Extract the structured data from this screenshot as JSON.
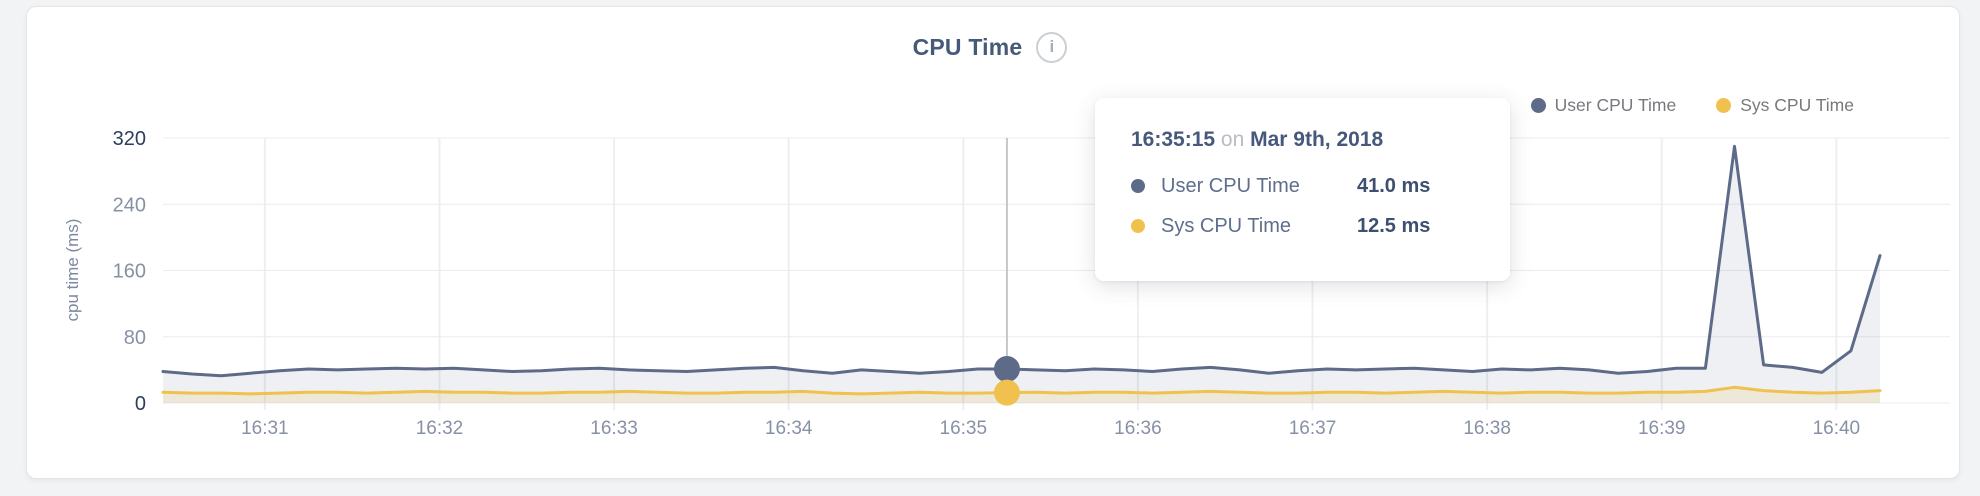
{
  "header": {
    "title": "CPU Time",
    "info_icon_glyph": "i"
  },
  "legend": [
    {
      "label": "User CPU Time",
      "color": "#5d6a88"
    },
    {
      "label": "Sys CPU Time",
      "color": "#f0c14e"
    }
  ],
  "tooltip": {
    "time": "16:35:15",
    "on_word": "on",
    "date": "Mar 9th, 2018",
    "rows": [
      {
        "label": "User CPU Time",
        "value": "41.0 ms",
        "color": "#5d6a88"
      },
      {
        "label": "Sys CPU Time",
        "value": "12.5 ms",
        "color": "#f0c14e"
      }
    ]
  },
  "chart_data": {
    "type": "area",
    "title": "CPU Time",
    "xlabel": "",
    "ylabel": "cpu time (ms)",
    "y_max": 320,
    "y_ticks": [
      0,
      80,
      160,
      240,
      320
    ],
    "grid": true,
    "legend_position": "top-right",
    "x_tick_labels": [
      "16:31",
      "16:32",
      "16:33",
      "16:34",
      "16:35",
      "16:36",
      "16:37",
      "16:38",
      "16:39",
      "16:40"
    ],
    "times": [
      "16:30:25",
      "16:30:35",
      "16:30:45",
      "16:30:55",
      "16:31:05",
      "16:31:15",
      "16:31:25",
      "16:31:35",
      "16:31:45",
      "16:31:55",
      "16:32:05",
      "16:32:15",
      "16:32:25",
      "16:32:35",
      "16:32:45",
      "16:32:55",
      "16:33:05",
      "16:33:15",
      "16:33:25",
      "16:33:35",
      "16:33:45",
      "16:33:55",
      "16:34:05",
      "16:34:15",
      "16:34:25",
      "16:34:35",
      "16:34:45",
      "16:34:55",
      "16:35:05",
      "16:35:15",
      "16:35:25",
      "16:35:35",
      "16:35:45",
      "16:35:55",
      "16:36:05",
      "16:36:15",
      "16:36:25",
      "16:36:35",
      "16:36:45",
      "16:36:55",
      "16:37:05",
      "16:37:15",
      "16:37:25",
      "16:37:35",
      "16:37:45",
      "16:37:55",
      "16:38:05",
      "16:38:15",
      "16:38:25",
      "16:38:35",
      "16:38:45",
      "16:38:55",
      "16:39:05",
      "16:39:15",
      "16:39:25",
      "16:39:35",
      "16:39:45",
      "16:39:55",
      "16:40:05",
      "16:40:15"
    ],
    "series": [
      {
        "name": "User CPU Time",
        "color": "#5d6a88",
        "fill": "rgba(93,106,136,0.10)",
        "values": [
          38,
          35,
          33,
          36,
          39,
          41,
          40,
          41,
          42,
          41,
          42,
          40,
          38,
          39,
          41,
          42,
          40,
          39,
          38,
          40,
          42,
          43,
          39,
          36,
          40,
          38,
          36,
          38,
          41,
          41,
          40,
          39,
          41,
          40,
          38,
          41,
          43,
          40,
          36,
          39,
          41,
          40,
          41,
          42,
          40,
          38,
          41,
          40,
          42,
          40,
          36,
          38,
          42,
          42,
          310,
          46,
          43,
          37,
          63,
          178
        ]
      },
      {
        "name": "Sys CPU Time",
        "color": "#f0c14e",
        "fill": "rgba(240,193,78,0.16)",
        "values": [
          13,
          12,
          12,
          11,
          12,
          13,
          13,
          12,
          13,
          14,
          13,
          13,
          12,
          12,
          13,
          13,
          14,
          13,
          12,
          12,
          13,
          13,
          14,
          12,
          11,
          12,
          13,
          12,
          12,
          12.5,
          13,
          12,
          13,
          13,
          12,
          13,
          14,
          13,
          12,
          12,
          13,
          13,
          12,
          13,
          14,
          13,
          12,
          13,
          13,
          12,
          12,
          13,
          13,
          14,
          19,
          15,
          13,
          12,
          13,
          15
        ]
      }
    ],
    "highlight": {
      "index": 29,
      "time_label": "16:35:15",
      "date_label": "Mar 9th, 2018",
      "values": {
        "user_ms": 41.0,
        "sys_ms": 12.5
      }
    }
  }
}
